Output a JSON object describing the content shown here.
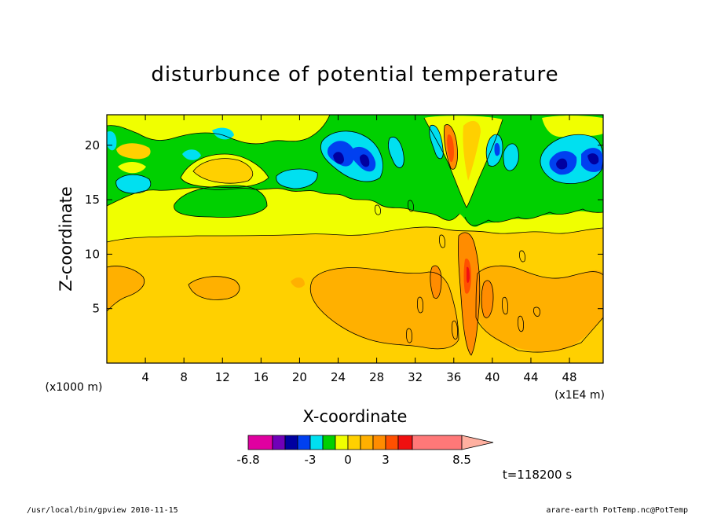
{
  "chart_data": {
    "type": "contour",
    "title": "disturbunce of potential temperature",
    "xlabel": "X-coordinate",
    "ylabel": "Z-coordinate",
    "x_unit_note": "(x1E4 m)",
    "y_unit_note": "(x1000 m)",
    "xlim": [
      0,
      51.5
    ],
    "ylim": [
      0,
      22.8
    ],
    "x_ticks": [
      4,
      8,
      12,
      16,
      20,
      24,
      28,
      32,
      36,
      40,
      44,
      48
    ],
    "y_ticks": [
      5,
      10,
      15,
      20
    ],
    "time_label": "t=118200 s",
    "colorbar": {
      "tick_labels": [
        "-6.8",
        "-3",
        "0",
        "3",
        "8.5"
      ],
      "tick_values": [
        -6.8,
        -3,
        0,
        3,
        8.5
      ],
      "min": -6.8,
      "max": 8.5,
      "levels": [
        -6.8,
        -6,
        -5,
        -4,
        -3,
        -2,
        -1,
        0,
        1,
        2,
        3,
        4,
        5,
        8.5
      ],
      "colors": [
        "#e000a0",
        "#7000b8",
        "#0000a0",
        "#0040f0",
        "#00e0f0",
        "#00d000",
        "#f0ff00",
        "#ffd000",
        "#ffb000",
        "#ff8c00",
        "#ff5000",
        "#f01010",
        "#ff7878",
        "#ffb0a0"
      ]
    },
    "field_colors": {
      "deep_negative": "#0000a0",
      "strong_negative": "#0040f0",
      "moderate_negative": "#00e0f0",
      "weak_negative": "#00d000",
      "near_zero": "#f0ff00",
      "weak_positive": "#ffd000",
      "moderate_positive": "#ffb000",
      "strong_positive": "#ff8c00",
      "very_strong_positive": "#ff5000",
      "extreme_positive": "#f01010"
    }
  },
  "footer": {
    "left": "/usr/local/bin/gpview   2010-11-15",
    "right": "arare-earth_PotTemp.nc@PotTemp"
  }
}
